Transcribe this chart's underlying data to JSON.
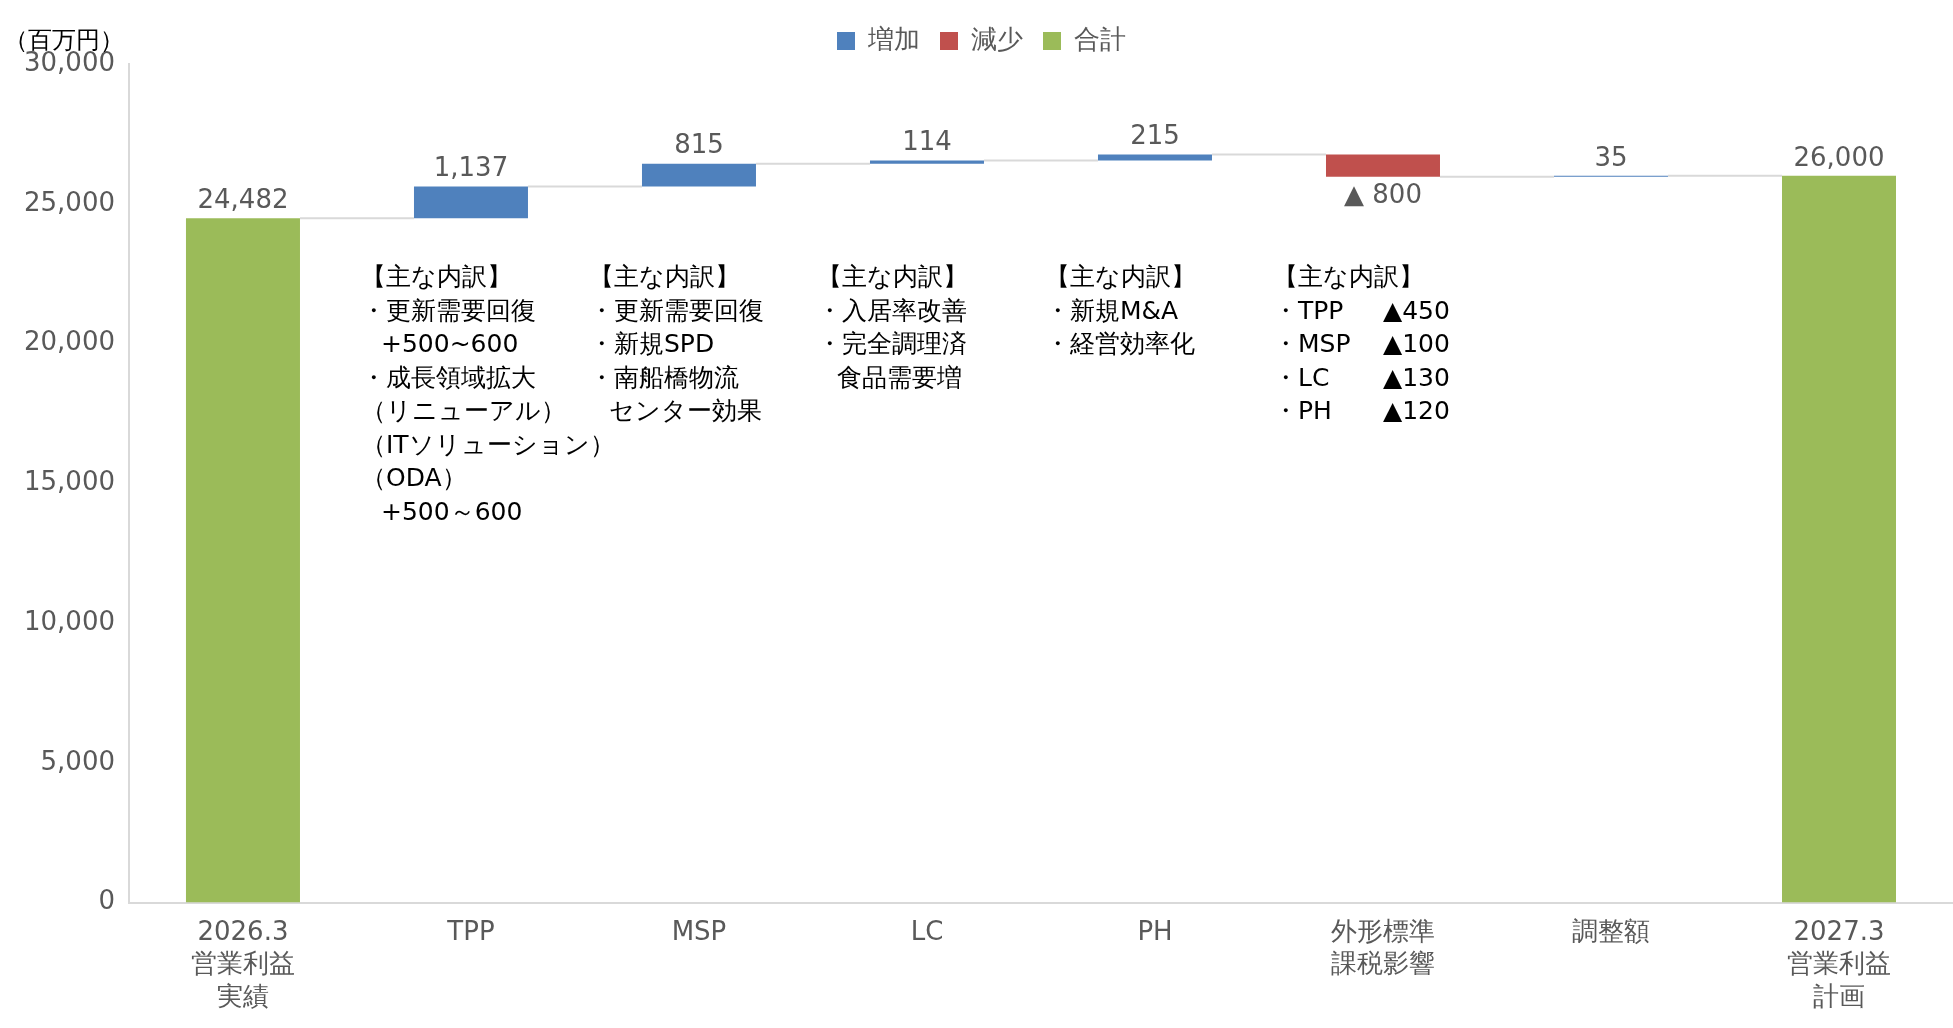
{
  "chart_data": {
    "type": "bar",
    "ylabel": "（百万円）",
    "legend": "top",
    "categories": [
      "2026.3\n営業利益実績",
      "TPP",
      "MSP",
      "LC",
      "PH",
      "外形標準課税影響",
      "調整額",
      "2027.3\n営業利益計画"
    ],
    "series": [
      {
        "name": "増加",
        "color": "#4f81bd",
        "values": [
          null,
          1137,
          815,
          114,
          215,
          null,
          35,
          null
        ],
        "base": [
          null,
          24482,
          25619,
          26434,
          26548,
          null,
          25963,
          null
        ],
        "value_labels": [
          null,
          "1,137",
          "815",
          "114",
          "215",
          null,
          "35",
          null
        ]
      },
      {
        "name": "減少",
        "color": "#c0504d",
        "values": [
          null,
          null,
          null,
          null,
          null,
          -800,
          null,
          null
        ],
        "base": [
          null,
          null,
          null,
          null,
          null,
          26763,
          null,
          null
        ],
        "value_labels": [
          null,
          null,
          null,
          null,
          null,
          "▲ 800",
          null,
          null
        ]
      },
      {
        "name": "合計",
        "color": "#9bbb59",
        "values": [
          24482,
          null,
          null,
          null,
          null,
          null,
          null,
          26000
        ],
        "base": [
          0,
          null,
          null,
          null,
          null,
          null,
          null,
          0
        ],
        "value_labels": [
          "24,482",
          null,
          null,
          null,
          null,
          null,
          null,
          "26,000"
        ]
      }
    ],
    "ylim": [
      0,
      30000
    ],
    "yticks": [
      {
        "value": 0,
        "label": "0"
      },
      {
        "value": 5000,
        "label": "5,000"
      },
      {
        "value": 10000,
        "label": "10,000"
      },
      {
        "value": 15000,
        "label": "15,000"
      },
      {
        "value": 20000,
        "label": "20,000"
      },
      {
        "value": 25000,
        "label": "25,000"
      },
      {
        "value": 30000,
        "label": "30,000"
      }
    ],
    "grid": false,
    "annotations": [
      "【主な内訳】・更新需要回復　+500~600・成長領域拡大（リニューアル）（ITソリューション）（ODA）　+500～600",
      "【主な内訳】・更新需要回復・新規SPD・南船橋物流",
      "センター効果",
      "【主な内訳】・入居率改善・完全調理済",
      "食品需要増",
      "【主な内訳】・新規M&A・経営効率化",
      "【主な内訳】・TPP ▲450・MSP ▲100・LC ▲130・PH ▲120"
    ]
  }
}
